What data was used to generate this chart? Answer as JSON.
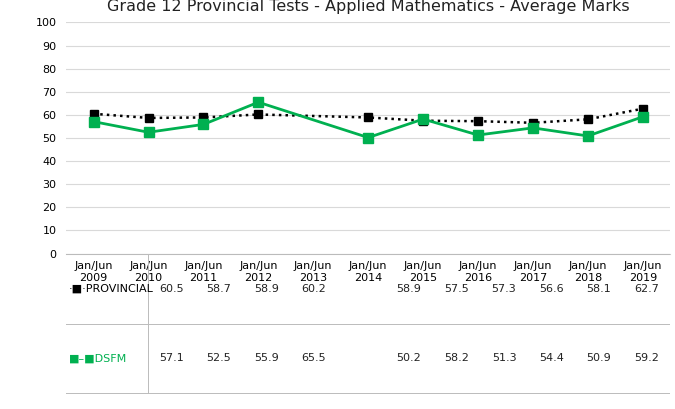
{
  "title": "Grade 12 Provincial Tests - Applied Mathematics - Average Marks",
  "x_labels": [
    "Jan/Jun\n2009",
    "Jan/Jun\n2010",
    "Jan/Jun\n2011",
    "Jan/Jun\n2012",
    "Jan/Jun\n2013",
    "Jan/Jun\n2014",
    "Jan/Jun\n2015",
    "Jan/Jun\n2016",
    "Jan/Jun\n2017",
    "Jan/Jun\n2018",
    "Jan/Jun\n2019"
  ],
  "x_positions": [
    0,
    1,
    2,
    3,
    4,
    5,
    6,
    7,
    8,
    9,
    10
  ],
  "provincial_x": [
    0,
    1,
    2,
    3,
    5,
    6,
    7,
    8,
    9,
    10
  ],
  "provincial_y": [
    60.5,
    58.7,
    58.9,
    60.2,
    58.9,
    57.5,
    57.3,
    56.6,
    58.1,
    62.7
  ],
  "dsfm_x": [
    0,
    1,
    2,
    3,
    5,
    6,
    7,
    8,
    9,
    10
  ],
  "dsfm_y": [
    57.1,
    52.5,
    55.9,
    65.5,
    50.2,
    58.2,
    51.3,
    54.4,
    50.9,
    59.2
  ],
  "provincial_color": "#000000",
  "dsfm_color": "#00b050",
  "ylim": [
    0,
    100
  ],
  "yticks": [
    0,
    10,
    20,
    30,
    40,
    50,
    60,
    70,
    80,
    90,
    100
  ],
  "table_provincial": [
    "60.5",
    "58.7",
    "58.9",
    "60.2",
    "",
    "58.9",
    "57.5",
    "57.3",
    "56.6",
    "58.1",
    "62.7"
  ],
  "table_dsfm": [
    "57.1",
    "52.5",
    "55.9",
    "65.5",
    "",
    "50.2",
    "58.2",
    "51.3",
    "54.4",
    "50.9",
    "59.2"
  ],
  "background_color": "#ffffff",
  "grid_color": "#d9d9d9",
  "title_fontsize": 11.5,
  "tick_fontsize": 8,
  "table_fontsize": 8,
  "label_row_prov": "·■·PROVINCIAL",
  "label_row_dsfm": "■DSFM"
}
